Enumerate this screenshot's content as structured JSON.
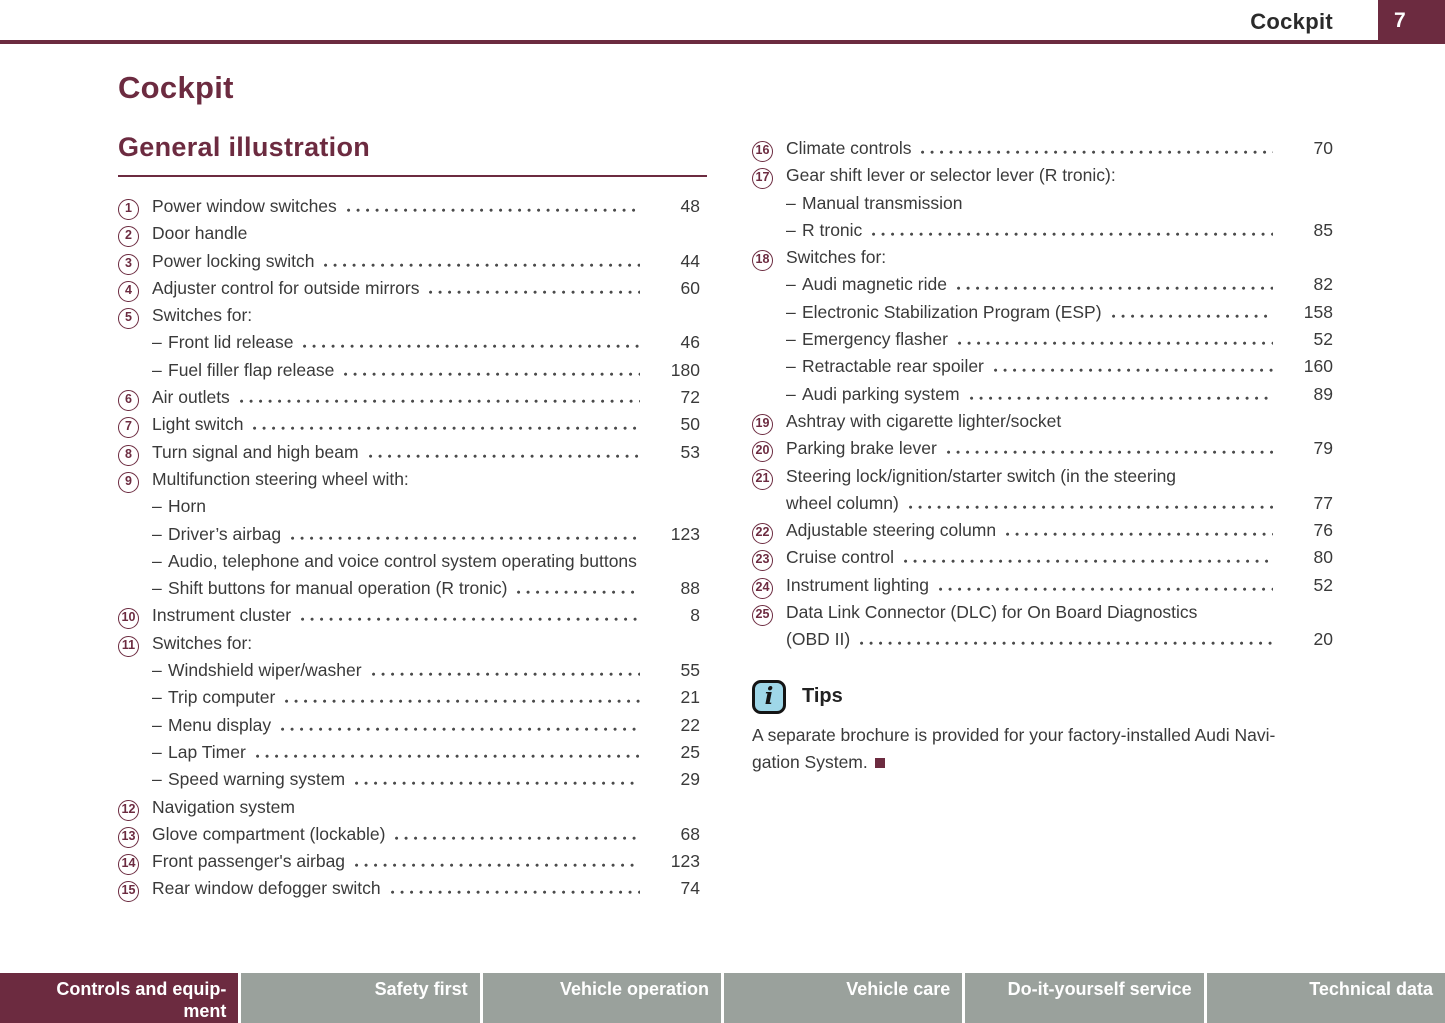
{
  "colors": {
    "maroon": "#6c2b40",
    "footer_gray": "#9aa19c",
    "body_text": "#3a3a3a",
    "tip_icon_bg": "#9fd7e8",
    "header_text": "#2b2b2b"
  },
  "header": {
    "section_label": "Cockpit",
    "page_number": "7"
  },
  "page": {
    "title": "Cockpit",
    "section_title": "General illustration"
  },
  "toc": {
    "left": [
      {
        "num": "1",
        "label": "Power window switches",
        "page": "48"
      },
      {
        "num": "2",
        "label": "Door handle",
        "page": null
      },
      {
        "num": "3",
        "label": "Power locking switch",
        "page": "44"
      },
      {
        "num": "4",
        "label": "Adjuster control for outside mirrors",
        "page": "60"
      },
      {
        "num": "5",
        "label": "Switches for:",
        "page": null,
        "sub": [
          {
            "label": "Front lid release",
            "page": "46"
          },
          {
            "label": "Fuel filler flap release",
            "page": "180"
          }
        ]
      },
      {
        "num": "6",
        "label": "Air outlets",
        "page": "72"
      },
      {
        "num": "7",
        "label": "Light switch",
        "page": "50"
      },
      {
        "num": "8",
        "label": "Turn signal and high beam",
        "page": "53"
      },
      {
        "num": "9",
        "label": "Multifunction steering wheel with:",
        "page": null,
        "sub": [
          {
            "label": "Horn",
            "page": null
          },
          {
            "label": "Driver’s airbag",
            "page": "123"
          },
          {
            "label": "Audio, telephone and voice control system operating buttons",
            "page": null
          },
          {
            "label": "Shift buttons for manual operation (R tronic)",
            "page": "88"
          }
        ]
      },
      {
        "num": "10",
        "label": "Instrument cluster",
        "page": "8"
      },
      {
        "num": "11",
        "label": "Switches for:",
        "page": null,
        "sub": [
          {
            "label": "Windshield wiper/washer",
            "page": "55"
          },
          {
            "label": "Trip computer",
            "page": "21"
          },
          {
            "label": "Menu display",
            "page": "22"
          },
          {
            "label": "Lap Timer",
            "page": "25"
          },
          {
            "label": "Speed warning system",
            "page": "29"
          }
        ]
      },
      {
        "num": "12",
        "label": "Navigation system",
        "page": null
      },
      {
        "num": "13",
        "label": "Glove compartment (lockable)",
        "page": "68"
      },
      {
        "num": "14",
        "label": "Front passenger's airbag",
        "page": "123"
      },
      {
        "num": "15",
        "label": "Rear window defogger switch",
        "page": "74"
      }
    ],
    "right": [
      {
        "num": "16",
        "label": "Climate controls",
        "page": "70"
      },
      {
        "num": "17",
        "label": "Gear shift lever or selector lever (R tronic):",
        "page": null,
        "sub": [
          {
            "label": "Manual transmission",
            "page": null
          },
          {
            "label": "R tronic",
            "page": "85"
          }
        ]
      },
      {
        "num": "18",
        "label": "Switches for:",
        "page": null,
        "sub": [
          {
            "label": "Audi magnetic ride",
            "page": "82"
          },
          {
            "label": "Electronic Stabilization Program (ESP)",
            "page": "158"
          },
          {
            "label": "Emergency flasher",
            "page": "52"
          },
          {
            "label": "Retractable rear spoiler",
            "page": "160"
          },
          {
            "label": "Audi parking system",
            "page": "89"
          }
        ]
      },
      {
        "num": "19",
        "label": "Ashtray with cigarette lighter/socket",
        "page": null
      },
      {
        "num": "20",
        "label": "Parking brake lever",
        "page": "79"
      },
      {
        "num": "21",
        "label": "Steering lock/ignition/starter switch (in the steering",
        "label2": "wheel column)",
        "page": "77"
      },
      {
        "num": "22",
        "label": "Adjustable steering column",
        "page": "76"
      },
      {
        "num": "23",
        "label": "Cruise control",
        "page": "80"
      },
      {
        "num": "24",
        "label": "Instrument lighting",
        "page": "52"
      },
      {
        "num": "25",
        "label": "Data Link Connector (DLC) for On Board Diagnostics",
        "label2": "(OBD II)",
        "page": "20"
      }
    ]
  },
  "tips": {
    "icon": "info-icon",
    "title": "Tips",
    "line1": "A separate brochure is provided for your factory-installed Audi Navi-",
    "line2": "gation System."
  },
  "footer": {
    "tabs": [
      {
        "id": "controls-and-equipment",
        "lines": [
          "Controls and equip-",
          "ment"
        ],
        "active": true
      },
      {
        "id": "safety-first",
        "lines": [
          "Safety first"
        ],
        "active": false
      },
      {
        "id": "vehicle-operation",
        "lines": [
          "Vehicle operation"
        ],
        "active": false
      },
      {
        "id": "vehicle-care",
        "lines": [
          "Vehicle care"
        ],
        "active": false
      },
      {
        "id": "do-it-yourself-service",
        "lines": [
          "Do-it-yourself service"
        ],
        "active": false
      },
      {
        "id": "technical-data",
        "lines": [
          "Technical data"
        ],
        "active": false
      }
    ]
  }
}
